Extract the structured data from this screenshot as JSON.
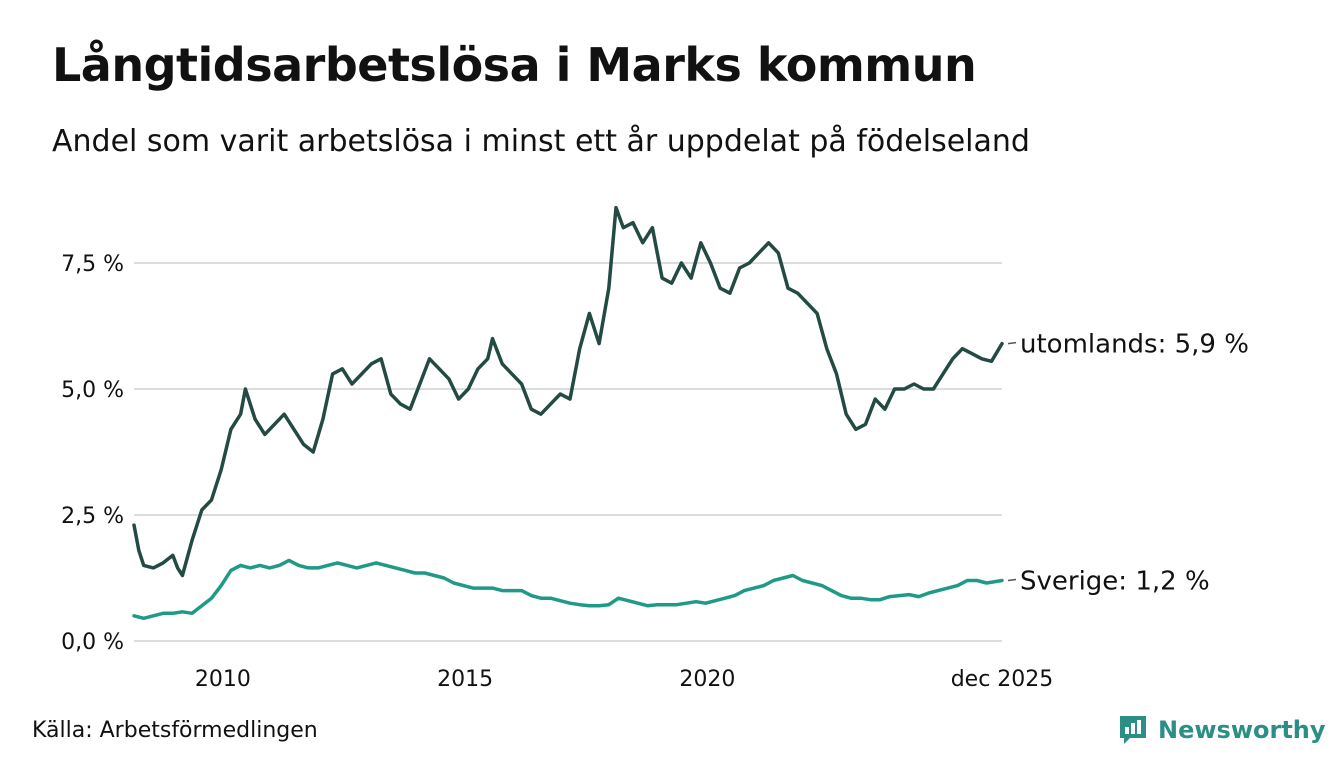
{
  "title": "Långtidsarbetslösa i Marks kommun",
  "subtitle": "Andel som varit arbetslösa i minst ett år uppdelat på födelseland",
  "source": "Källa: Arbetsförmedlingen",
  "brand": {
    "name": "Newsworthy",
    "icon": "newsworthy-logo-icon"
  },
  "colors": {
    "utomlands": "#244a44",
    "sverige": "#1f9a86",
    "grid": "#dcdcdc",
    "text": "#111111",
    "brand": "#2b8f86"
  },
  "chart_data": {
    "type": "line",
    "title": "Långtidsarbetslösa i Marks kommun",
    "xlabel": "",
    "ylabel": "",
    "xlim": [
      2008.0,
      2025.917
    ],
    "ylim": [
      0,
      8.7
    ],
    "y_ticks": [
      {
        "value": 0,
        "label": "0,0 %"
      },
      {
        "value": 2.5,
        "label": "2,5 %"
      },
      {
        "value": 5,
        "label": "5,0 %"
      },
      {
        "value": 7.5,
        "label": "7,5 %"
      }
    ],
    "x_ticks": [
      {
        "value": 2010,
        "label": "2010"
      },
      {
        "value": 2015,
        "label": "2015"
      },
      {
        "value": 2020,
        "label": "2020"
      },
      {
        "value": 2025.917,
        "label": "dec 2025"
      }
    ],
    "series": [
      {
        "name": "utomlands",
        "end_label": "utomlands: 5,9 %",
        "points": [
          [
            2008.0,
            2.3
          ],
          [
            2008.1,
            1.8
          ],
          [
            2008.2,
            1.5
          ],
          [
            2008.4,
            1.45
          ],
          [
            2008.6,
            1.55
          ],
          [
            2008.8,
            1.7
          ],
          [
            2008.9,
            1.45
          ],
          [
            2009.0,
            1.3
          ],
          [
            2009.2,
            2.0
          ],
          [
            2009.4,
            2.6
          ],
          [
            2009.6,
            2.8
          ],
          [
            2009.8,
            3.4
          ],
          [
            2010.0,
            4.2
          ],
          [
            2010.2,
            4.5
          ],
          [
            2010.3,
            5.0
          ],
          [
            2010.5,
            4.4
          ],
          [
            2010.7,
            4.1
          ],
          [
            2010.9,
            4.3
          ],
          [
            2011.1,
            4.5
          ],
          [
            2011.3,
            4.2
          ],
          [
            2011.5,
            3.9
          ],
          [
            2011.7,
            3.75
          ],
          [
            2011.9,
            4.4
          ],
          [
            2012.1,
            5.3
          ],
          [
            2012.3,
            5.4
          ],
          [
            2012.5,
            5.1
          ],
          [
            2012.7,
            5.3
          ],
          [
            2012.9,
            5.5
          ],
          [
            2013.1,
            5.6
          ],
          [
            2013.3,
            4.9
          ],
          [
            2013.5,
            4.7
          ],
          [
            2013.7,
            4.6
          ],
          [
            2013.9,
            5.1
          ],
          [
            2014.1,
            5.6
          ],
          [
            2014.3,
            5.4
          ],
          [
            2014.5,
            5.2
          ],
          [
            2014.7,
            4.8
          ],
          [
            2014.9,
            5.0
          ],
          [
            2015.1,
            5.4
          ],
          [
            2015.3,
            5.6
          ],
          [
            2015.4,
            6.0
          ],
          [
            2015.6,
            5.5
          ],
          [
            2015.8,
            5.3
          ],
          [
            2016.0,
            5.1
          ],
          [
            2016.2,
            4.6
          ],
          [
            2016.4,
            4.5
          ],
          [
            2016.6,
            4.7
          ],
          [
            2016.8,
            4.9
          ],
          [
            2017.0,
            4.8
          ],
          [
            2017.2,
            5.8
          ],
          [
            2017.4,
            6.5
          ],
          [
            2017.6,
            5.9
          ],
          [
            2017.8,
            7.0
          ],
          [
            2017.95,
            8.6
          ],
          [
            2018.1,
            8.2
          ],
          [
            2018.3,
            8.3
          ],
          [
            2018.5,
            7.9
          ],
          [
            2018.7,
            8.2
          ],
          [
            2018.9,
            7.2
          ],
          [
            2019.1,
            7.1
          ],
          [
            2019.3,
            7.5
          ],
          [
            2019.5,
            7.2
          ],
          [
            2019.7,
            7.9
          ],
          [
            2019.9,
            7.5
          ],
          [
            2020.1,
            7.0
          ],
          [
            2020.3,
            6.9
          ],
          [
            2020.5,
            7.4
          ],
          [
            2020.7,
            7.5
          ],
          [
            2020.9,
            7.7
          ],
          [
            2021.1,
            7.9
          ],
          [
            2021.3,
            7.7
          ],
          [
            2021.5,
            7.0
          ],
          [
            2021.7,
            6.9
          ],
          [
            2021.9,
            6.7
          ],
          [
            2022.1,
            6.5
          ],
          [
            2022.3,
            5.8
          ],
          [
            2022.5,
            5.3
          ],
          [
            2022.7,
            4.5
          ],
          [
            2022.9,
            4.2
          ],
          [
            2023.1,
            4.3
          ],
          [
            2023.3,
            4.8
          ],
          [
            2023.5,
            4.6
          ],
          [
            2023.7,
            5.0
          ],
          [
            2023.9,
            5.0
          ],
          [
            2024.1,
            5.1
          ],
          [
            2024.3,
            5.0
          ],
          [
            2024.5,
            5.0
          ],
          [
            2024.7,
            5.3
          ],
          [
            2024.9,
            5.6
          ],
          [
            2025.1,
            5.8
          ],
          [
            2025.3,
            5.7
          ],
          [
            2025.5,
            5.6
          ],
          [
            2025.7,
            5.55
          ],
          [
            2025.917,
            5.9
          ]
        ]
      },
      {
        "name": "Sverige",
        "end_label": "Sverige: 1,2 %",
        "points": [
          [
            2008.0,
            0.5
          ],
          [
            2008.2,
            0.45
          ],
          [
            2008.4,
            0.5
          ],
          [
            2008.6,
            0.55
          ],
          [
            2008.8,
            0.55
          ],
          [
            2009.0,
            0.58
          ],
          [
            2009.2,
            0.55
          ],
          [
            2009.4,
            0.7
          ],
          [
            2009.6,
            0.85
          ],
          [
            2009.8,
            1.1
          ],
          [
            2010.0,
            1.4
          ],
          [
            2010.2,
            1.5
          ],
          [
            2010.4,
            1.45
          ],
          [
            2010.6,
            1.5
          ],
          [
            2010.8,
            1.45
          ],
          [
            2011.0,
            1.5
          ],
          [
            2011.2,
            1.6
          ],
          [
            2011.4,
            1.5
          ],
          [
            2011.6,
            1.45
          ],
          [
            2011.8,
            1.45
          ],
          [
            2012.0,
            1.5
          ],
          [
            2012.2,
            1.55
          ],
          [
            2012.4,
            1.5
          ],
          [
            2012.6,
            1.45
          ],
          [
            2012.8,
            1.5
          ],
          [
            2013.0,
            1.55
          ],
          [
            2013.2,
            1.5
          ],
          [
            2013.4,
            1.45
          ],
          [
            2013.6,
            1.4
          ],
          [
            2013.8,
            1.35
          ],
          [
            2014.0,
            1.35
          ],
          [
            2014.2,
            1.3
          ],
          [
            2014.4,
            1.25
          ],
          [
            2014.6,
            1.15
          ],
          [
            2014.8,
            1.1
          ],
          [
            2015.0,
            1.05
          ],
          [
            2015.2,
            1.05
          ],
          [
            2015.4,
            1.05
          ],
          [
            2015.6,
            1.0
          ],
          [
            2015.8,
            1.0
          ],
          [
            2016.0,
            1.0
          ],
          [
            2016.2,
            0.9
          ],
          [
            2016.4,
            0.85
          ],
          [
            2016.6,
            0.85
          ],
          [
            2016.8,
            0.8
          ],
          [
            2017.0,
            0.75
          ],
          [
            2017.2,
            0.72
          ],
          [
            2017.4,
            0.7
          ],
          [
            2017.6,
            0.7
          ],
          [
            2017.8,
            0.72
          ],
          [
            2018.0,
            0.85
          ],
          [
            2018.2,
            0.8
          ],
          [
            2018.4,
            0.75
          ],
          [
            2018.6,
            0.7
          ],
          [
            2018.8,
            0.72
          ],
          [
            2019.0,
            0.72
          ],
          [
            2019.2,
            0.72
          ],
          [
            2019.4,
            0.75
          ],
          [
            2019.6,
            0.78
          ],
          [
            2019.8,
            0.75
          ],
          [
            2020.0,
            0.8
          ],
          [
            2020.2,
            0.85
          ],
          [
            2020.4,
            0.9
          ],
          [
            2020.6,
            1.0
          ],
          [
            2020.8,
            1.05
          ],
          [
            2021.0,
            1.1
          ],
          [
            2021.2,
            1.2
          ],
          [
            2021.4,
            1.25
          ],
          [
            2021.6,
            1.3
          ],
          [
            2021.8,
            1.2
          ],
          [
            2022.0,
            1.15
          ],
          [
            2022.2,
            1.1
          ],
          [
            2022.4,
            1.0
          ],
          [
            2022.6,
            0.9
          ],
          [
            2022.8,
            0.85
          ],
          [
            2023.0,
            0.85
          ],
          [
            2023.2,
            0.82
          ],
          [
            2023.4,
            0.82
          ],
          [
            2023.6,
            0.88
          ],
          [
            2023.8,
            0.9
          ],
          [
            2024.0,
            0.92
          ],
          [
            2024.2,
            0.88
          ],
          [
            2024.4,
            0.95
          ],
          [
            2024.6,
            1.0
          ],
          [
            2024.8,
            1.05
          ],
          [
            2025.0,
            1.1
          ],
          [
            2025.2,
            1.2
          ],
          [
            2025.4,
            1.2
          ],
          [
            2025.6,
            1.15
          ],
          [
            2025.917,
            1.2
          ]
        ]
      }
    ]
  }
}
